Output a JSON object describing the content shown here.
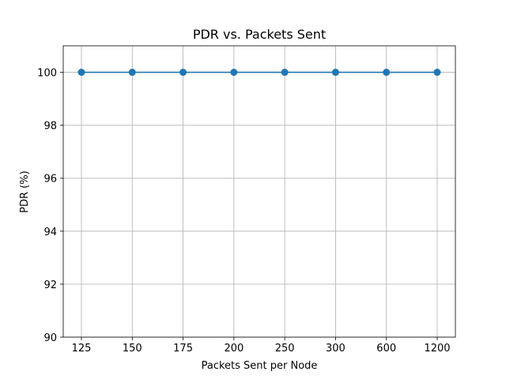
{
  "chart_data": {
    "type": "line",
    "title": "PDR vs. Packets Sent",
    "xlabel": "Packets Sent per Node",
    "ylabel": "PDR (%)",
    "categories": [
      "125",
      "150",
      "175",
      "200",
      "250",
      "300",
      "600",
      "1200"
    ],
    "series": [
      {
        "values": [
          100,
          100,
          100,
          100,
          100,
          100,
          100,
          100
        ],
        "color": "#1f77b4",
        "marker": "circle"
      }
    ],
    "ylim": [
      90,
      101
    ],
    "yticks": [
      90,
      92,
      94,
      96,
      98,
      100
    ],
    "ytick_labels": [
      "90",
      "92",
      "94",
      "96",
      "98",
      "100"
    ],
    "grid": true,
    "grid_color": "#b0b0b0",
    "legend": false
  }
}
